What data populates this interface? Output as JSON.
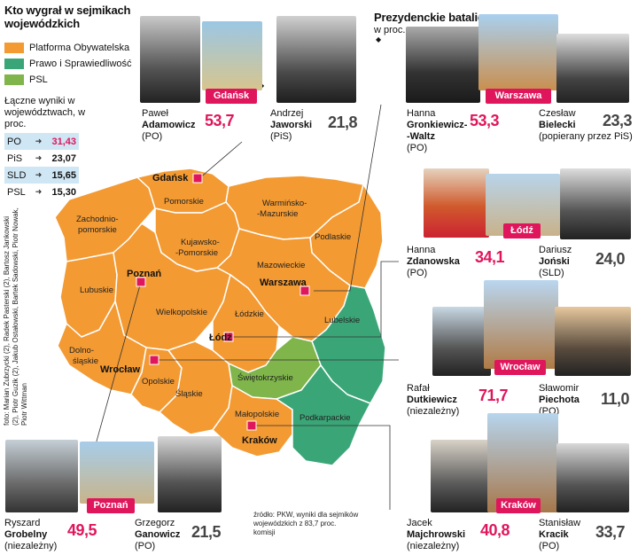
{
  "left_title": "Kto wygrał w sejmikach wojewódzkich",
  "right_title": "Prezydenckie batalie",
  "right_subtitle": "w proc.",
  "legend": [
    {
      "label": "Platforma Obywatelska",
      "color": "#f39a33"
    },
    {
      "label": "Prawo i Sprawiedliwość",
      "color": "#3aa677"
    },
    {
      "label": "PSL",
      "color": "#7fb54a"
    }
  ],
  "totals_caption": "Łączne wyniki w województwach, w proc.",
  "totals": [
    {
      "party": "PO",
      "value": "31,43",
      "color": "#e0165c"
    },
    {
      "party": "PiS",
      "value": "23,07",
      "color": "#111"
    },
    {
      "party": "SLD",
      "value": "15,65",
      "color": "#111"
    },
    {
      "party": "PSL",
      "value": "15,30",
      "color": "#111"
    }
  ],
  "credits": "foto: Marian Zubrzycki (2), Radek Pasterski (2), Bartosz Jankowski (2), Piotr Guzik (2), Jakub Ostałowski, Bartek Sadowski, Piotr Nowak, Piotr Wittman",
  "source": "źródło: PKW, wyniki dla sejmików wojewódzkich z 83,7 proc. komisji",
  "regions": {
    "pomorskie": "Pomorskie",
    "warminsko": "Warmińsko-Mazurskie",
    "warminsko_1": "Warmińsko-",
    "warminsko_2": "-Mazurskie",
    "zachodnio_1": "Zachodnio-",
    "zachodnio_2": "pomorskie",
    "podlaskie": "Podlaskie",
    "kujawsko_1": "Kujawsko-",
    "kujawsko_2": "-Pomorskie",
    "mazowieckie": "Mazowieckie",
    "lubuskie": "Lubuskie",
    "wielkopolskie": "Wielkopolskie",
    "lodzkie": "Łódzkie",
    "lubelskie": "Lubelskie",
    "dolno_1": "Dolno-",
    "dolno_2": "śląskie",
    "opolskie": "Opolskie",
    "swietokrzyskie": "Świętokrzyskie",
    "slaskie": "Śląskie",
    "malopolskie": "Małopolskie",
    "podkarpackie": "Podkarpackie"
  },
  "cities": {
    "gdansk": "Gdańsk",
    "poznan": "Poznań",
    "warszawa": "Warszawa",
    "lodz": "Łódź",
    "wroclaw": "Wrocław",
    "krakow": "Kraków"
  },
  "battles": {
    "gdansk": {
      "city": "Gdańsk",
      "winner": {
        "first": "Paweł",
        "last": "Adamowicz",
        "party": "(PO)",
        "score": "53,7"
      },
      "loser": {
        "first": "Andrzej",
        "last": "Jaworski",
        "party": "(PiS)",
        "score": "21,8"
      }
    },
    "warszawa": {
      "city": "Warszawa",
      "winner": {
        "first": "Hanna",
        "last": "Gronkiewicz-",
        "last2": "-Waltz",
        "party": "(PO)",
        "score": "53,3"
      },
      "loser": {
        "first": "Czesław",
        "last": "Bielecki",
        "party": "(popierany przez PiS)",
        "score": "23,3"
      }
    },
    "lodz": {
      "city": "Łódź",
      "winner": {
        "first": "Hanna",
        "last": "Zdanowska",
        "party": "(PO)",
        "score": "34,1"
      },
      "loser": {
        "first": "Dariusz",
        "last": "Joński",
        "party": "(SLD)",
        "score": "24,0"
      }
    },
    "wroclaw": {
      "city": "Wrocław",
      "winner": {
        "first": "Rafał",
        "last": "Dutkiewicz",
        "party": "(niezależny)",
        "score": "71,7"
      },
      "loser": {
        "first": "Sławomir",
        "last": "Piechota",
        "party": "(PO)",
        "score": "11,0"
      }
    },
    "krakow": {
      "city": "Kraków",
      "winner": {
        "first": "Jacek",
        "last": "Majchrowski",
        "party": "(niezależny)",
        "score": "40,8"
      },
      "loser": {
        "first": "Stanisław",
        "last": "Kracik",
        "party": "(PO)",
        "score": "33,7"
      }
    },
    "poznan": {
      "city": "Poznań",
      "winner": {
        "first": "Ryszard",
        "last": "Grobelny",
        "party": "(niezależny)",
        "score": "49,5"
      },
      "loser": {
        "first": "Grzegorz",
        "last": "Ganowicz",
        "party": "(PO)",
        "score": "21,5"
      }
    }
  }
}
